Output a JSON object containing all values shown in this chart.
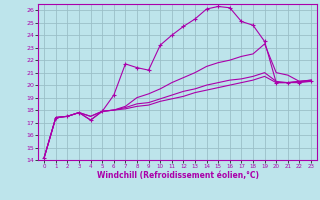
{
  "xlabel": "Windchill (Refroidissement éolien,°C)",
  "xlim": [
    -0.5,
    23.5
  ],
  "ylim": [
    14,
    26.5
  ],
  "xticks": [
    0,
    1,
    2,
    3,
    4,
    5,
    6,
    7,
    8,
    9,
    10,
    11,
    12,
    13,
    14,
    15,
    16,
    17,
    18,
    19,
    20,
    21,
    22,
    23
  ],
  "yticks": [
    14,
    15,
    16,
    17,
    18,
    19,
    20,
    21,
    22,
    23,
    24,
    25,
    26
  ],
  "bg_color": "#bde4eb",
  "line_color": "#aa00aa",
  "grid_color": "#9bbfc8",
  "lines": [
    {
      "x": [
        0,
        1,
        2,
        3,
        4,
        5,
        6,
        7,
        8,
        9,
        10,
        11,
        12,
        13,
        14,
        15,
        16,
        17,
        18,
        19,
        20,
        21,
        22,
        23
      ],
      "y": [
        14.2,
        17.4,
        17.5,
        17.8,
        17.2,
        17.9,
        19.2,
        21.7,
        21.4,
        21.2,
        23.2,
        24.0,
        24.7,
        25.3,
        26.1,
        26.3,
        26.2,
        25.1,
        24.8,
        23.5,
        20.2,
        20.2,
        20.2,
        20.3
      ],
      "marker": "+"
    },
    {
      "x": [
        0,
        1,
        2,
        3,
        4,
        5,
        6,
        7,
        8,
        9,
        10,
        11,
        12,
        13,
        14,
        15,
        16,
        17,
        18,
        19,
        20,
        21,
        22,
        23
      ],
      "y": [
        14.2,
        17.4,
        17.5,
        17.8,
        17.2,
        17.9,
        18.0,
        18.3,
        19.0,
        19.3,
        19.7,
        20.2,
        20.6,
        21.0,
        21.5,
        21.8,
        22.0,
        22.3,
        22.5,
        23.3,
        21.0,
        20.8,
        20.3,
        20.3
      ],
      "marker": null
    },
    {
      "x": [
        0,
        1,
        2,
        3,
        4,
        5,
        6,
        7,
        8,
        9,
        10,
        11,
        12,
        13,
        14,
        15,
        16,
        17,
        18,
        19,
        20,
        21,
        22,
        23
      ],
      "y": [
        14.2,
        17.4,
        17.5,
        17.8,
        17.5,
        17.9,
        18.0,
        18.2,
        18.5,
        18.6,
        18.9,
        19.2,
        19.5,
        19.7,
        20.0,
        20.2,
        20.4,
        20.5,
        20.7,
        21.0,
        20.3,
        20.2,
        20.3,
        20.4
      ],
      "marker": null
    },
    {
      "x": [
        0,
        1,
        2,
        3,
        4,
        5,
        6,
        7,
        8,
        9,
        10,
        11,
        12,
        13,
        14,
        15,
        16,
        17,
        18,
        19,
        20,
        21,
        22,
        23
      ],
      "y": [
        14.2,
        17.4,
        17.5,
        17.8,
        17.5,
        17.9,
        18.0,
        18.1,
        18.3,
        18.4,
        18.7,
        18.9,
        19.1,
        19.4,
        19.6,
        19.8,
        20.0,
        20.2,
        20.4,
        20.7,
        20.2,
        20.2,
        20.3,
        20.4
      ],
      "marker": null
    }
  ]
}
